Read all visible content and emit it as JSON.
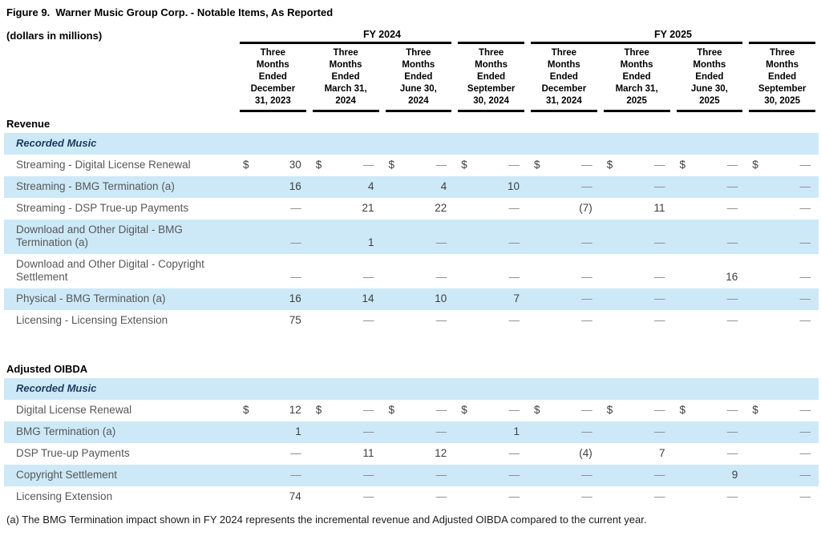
{
  "title": "Figure 9.  Warner Music Group Corp. - Notable Items, As Reported",
  "subtitle": "(dollars in millions)",
  "currency": "$",
  "nil_symbol": "—",
  "colors": {
    "band_blue": "#cde9f8",
    "rule_black": "#000000",
    "group_label_navy": "#1c3a5e"
  },
  "year_groups": [
    {
      "label": "FY 2024",
      "span": 4
    },
    {
      "label": "FY 2025",
      "span": 4
    }
  ],
  "columns": [
    "Three\nMonths\nEnded\nDecember\n31, 2023",
    "Three\nMonths\nEnded\nMarch 31,\n2024",
    "Three\nMonths\nEnded\nJune 30,\n2024",
    "Three\nMonths\nEnded\nSeptember\n30, 2024",
    "Three\nMonths\nEnded\nDecember\n31, 2024",
    "Three\nMonths\nEnded\nMarch 31,\n2025",
    "Three\nMonths\nEnded\nJune 30,\n2025",
    "Three\nMonths\nEnded\nSeptember\n30, 2025"
  ],
  "revenue": {
    "section_label": "Revenue",
    "group_label": "Recorded Music",
    "rows": [
      {
        "label": "Streaming - Digital License Renewal",
        "dollar": true,
        "values": [
          "30",
          "—",
          "—",
          "—",
          "—",
          "—",
          "—",
          "—"
        ]
      },
      {
        "label": "Streaming - BMG Termination (a)",
        "values": [
          "16",
          "4",
          "4",
          "10",
          "—",
          "—",
          "—",
          "—"
        ]
      },
      {
        "label": "Streaming - DSP True-up Payments",
        "values": [
          "—",
          "21",
          "22",
          "—",
          "(7)",
          "11",
          "—",
          "—"
        ]
      },
      {
        "label": "Download and Other Digital - BMG Termination (a)",
        "values": [
          "—",
          "1",
          "—",
          "—",
          "—",
          "—",
          "—",
          "—"
        ]
      },
      {
        "label": "Download and Other Digital - Copyright Settlement",
        "values": [
          "—",
          "—",
          "—",
          "—",
          "—",
          "—",
          "16",
          "—"
        ]
      },
      {
        "label": "Physical - BMG Termination (a)",
        "values": [
          "16",
          "14",
          "10",
          "7",
          "—",
          "—",
          "—",
          "—"
        ]
      },
      {
        "label": "Licensing - Licensing Extension",
        "values": [
          "75",
          "—",
          "—",
          "—",
          "—",
          "—",
          "—",
          "—"
        ]
      }
    ]
  },
  "oibda": {
    "section_label": "Adjusted OIBDA",
    "group_label": "Recorded Music",
    "rows": [
      {
        "label": "Digital License Renewal",
        "dollar": true,
        "values": [
          "12",
          "—",
          "—",
          "—",
          "—",
          "—",
          "—",
          "—"
        ]
      },
      {
        "label": "BMG Termination (a)",
        "values": [
          "1",
          "—",
          "—",
          "1",
          "—",
          "—",
          "—",
          "—"
        ]
      },
      {
        "label": "DSP True-up Payments",
        "values": [
          "—",
          "11",
          "12",
          "—",
          "(4)",
          "7",
          "—",
          "—"
        ]
      },
      {
        "label": "Copyright Settlement",
        "values": [
          "—",
          "—",
          "—",
          "—",
          "—",
          "—",
          "9",
          "—"
        ]
      },
      {
        "label": "Licensing Extension",
        "values": [
          "74",
          "—",
          "—",
          "—",
          "—",
          "—",
          "—",
          "—"
        ]
      }
    ]
  },
  "footnote": "(a) The BMG Termination impact shown in FY 2024 represents the incremental revenue and Adjusted OIBDA compared to the current year."
}
